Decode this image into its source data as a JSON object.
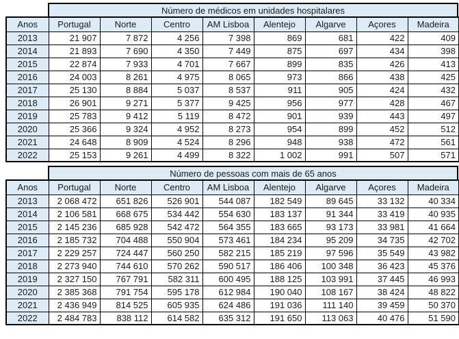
{
  "colors": {
    "header_fill": "#ddebf7",
    "cell_fill": "#ffffff",
    "border": "#000000",
    "text": "#1a1a1a"
  },
  "tables": [
    {
      "title": "Número de médicos em unidades hospitalares",
      "columns": [
        "Anos",
        "Portugal",
        "Norte",
        "Centro",
        "AM Lisboa",
        "Alentejo",
        "Algarve",
        "Açores",
        "Madeira"
      ],
      "rows": [
        [
          "2013",
          "21 907",
          "7 872",
          "4 256",
          "7 398",
          "869",
          "681",
          "422",
          "409"
        ],
        [
          "2014",
          "21 893",
          "7 690",
          "4 350",
          "7 449",
          "875",
          "697",
          "434",
          "398"
        ],
        [
          "2015",
          "22 874",
          "7 933",
          "4 701",
          "7 667",
          "899",
          "835",
          "426",
          "413"
        ],
        [
          "2016",
          "24 003",
          "8 261",
          "4 975",
          "8 065",
          "973",
          "866",
          "438",
          "425"
        ],
        [
          "2017",
          "25 130",
          "8 884",
          "5 037",
          "8 537",
          "911",
          "905",
          "424",
          "432"
        ],
        [
          "2018",
          "26 901",
          "9 271",
          "5 377",
          "9 425",
          "956",
          "977",
          "428",
          "467"
        ],
        [
          "2019",
          "25 783",
          "9 412",
          "5 119",
          "8 472",
          "901",
          "939",
          "443",
          "497"
        ],
        [
          "2020",
          "25 366",
          "9 324",
          "4 952",
          "8 273",
          "954",
          "899",
          "452",
          "512"
        ],
        [
          "2021",
          "24 648",
          "8 909",
          "4 524",
          "8 296",
          "948",
          "938",
          "472",
          "561"
        ],
        [
          "2022",
          "25 153",
          "9 261",
          "4 499",
          "8 322",
          "1 002",
          "991",
          "507",
          "571"
        ]
      ]
    },
    {
      "title": "Número de pessoas com mais de 65 anos",
      "columns": [
        "Anos",
        "Portugal",
        "Norte",
        "Centro",
        "AM Lisboa",
        "Alentejo",
        "Algarve",
        "Açores",
        "Madeira"
      ],
      "rows": [
        [
          "2013",
          "2 068 472",
          "651 826",
          "526 901",
          "544 087",
          "182 549",
          "89 645",
          "33 132",
          "40 334"
        ],
        [
          "2014",
          "2 106 581",
          "668 675",
          "534 442",
          "554 630",
          "183 137",
          "91 344",
          "33 419",
          "40 935"
        ],
        [
          "2015",
          "2 145 236",
          "685 928",
          "542 472",
          "564 355",
          "183 665",
          "93 173",
          "33 981",
          "41 664"
        ],
        [
          "2016",
          "2 185 732",
          "704 488",
          "550 904",
          "573 461",
          "184 234",
          "95 209",
          "34 735",
          "42 702"
        ],
        [
          "2017",
          "2 229 257",
          "724 447",
          "560 250",
          "582 215",
          "185 219",
          "97 596",
          "35 549",
          "43 982"
        ],
        [
          "2018",
          "2 273 940",
          "744 610",
          "570 262",
          "590 517",
          "186 406",
          "100 348",
          "36 423",
          "45 376"
        ],
        [
          "2019",
          "2 327 150",
          "767 791",
          "582 311",
          "600 495",
          "188 125",
          "103 991",
          "37 445",
          "46 993"
        ],
        [
          "2020",
          "2 385 368",
          "791 754",
          "595 178",
          "612 984",
          "190 040",
          "108 167",
          "38 424",
          "48 822"
        ],
        [
          "2021",
          "2 436 949",
          "814 525",
          "605 935",
          "624 486",
          "191 036",
          "111 140",
          "39 459",
          "50 370"
        ],
        [
          "2022",
          "2 484 783",
          "838 112",
          "614 582",
          "635 312",
          "191 650",
          "113 063",
          "40 476",
          "51 590"
        ]
      ]
    }
  ],
  "chart_data": [
    {
      "type": "table",
      "title": "Número de médicos em unidades hospitalares",
      "columns": [
        "Anos",
        "Portugal",
        "Norte",
        "Centro",
        "AM Lisboa",
        "Alentejo",
        "Algarve",
        "Açores",
        "Madeira"
      ],
      "rows": [
        [
          2013,
          21907,
          7872,
          4256,
          7398,
          869,
          681,
          422,
          409
        ],
        [
          2014,
          21893,
          7690,
          4350,
          7449,
          875,
          697,
          434,
          398
        ],
        [
          2015,
          22874,
          7933,
          4701,
          7667,
          899,
          835,
          426,
          413
        ],
        [
          2016,
          24003,
          8261,
          4975,
          8065,
          973,
          866,
          438,
          425
        ],
        [
          2017,
          25130,
          8884,
          5037,
          8537,
          911,
          905,
          424,
          432
        ],
        [
          2018,
          26901,
          9271,
          5377,
          9425,
          956,
          977,
          428,
          467
        ],
        [
          2019,
          25783,
          9412,
          5119,
          8472,
          901,
          939,
          443,
          497
        ],
        [
          2020,
          25366,
          9324,
          4952,
          8273,
          954,
          899,
          452,
          512
        ],
        [
          2021,
          24648,
          8909,
          4524,
          8296,
          948,
          938,
          472,
          561
        ],
        [
          2022,
          25153,
          9261,
          4499,
          8322,
          1002,
          991,
          507,
          571
        ]
      ]
    },
    {
      "type": "table",
      "title": "Número de pessoas com mais de 65 anos",
      "columns": [
        "Anos",
        "Portugal",
        "Norte",
        "Centro",
        "AM Lisboa",
        "Alentejo",
        "Algarve",
        "Açores",
        "Madeira"
      ],
      "rows": [
        [
          2013,
          2068472,
          651826,
          526901,
          544087,
          182549,
          89645,
          33132,
          40334
        ],
        [
          2014,
          2106581,
          668675,
          534442,
          554630,
          183137,
          91344,
          33419,
          40935
        ],
        [
          2015,
          2145236,
          685928,
          542472,
          564355,
          183665,
          93173,
          33981,
          41664
        ],
        [
          2016,
          2185732,
          704488,
          550904,
          573461,
          184234,
          95209,
          34735,
          42702
        ],
        [
          2017,
          2229257,
          724447,
          560250,
          582215,
          185219,
          97596,
          35549,
          43982
        ],
        [
          2018,
          2273940,
          744610,
          570262,
          590517,
          186406,
          100348,
          36423,
          45376
        ],
        [
          2019,
          2327150,
          767791,
          582311,
          600495,
          188125,
          103991,
          37445,
          46993
        ],
        [
          2020,
          2385368,
          791754,
          595178,
          612984,
          190040,
          108167,
          38424,
          48822
        ],
        [
          2021,
          2436949,
          814525,
          605935,
          624486,
          191036,
          111140,
          39459,
          50370
        ],
        [
          2022,
          2484783,
          838112,
          614582,
          635312,
          191650,
          113063,
          40476,
          51590
        ]
      ]
    }
  ]
}
